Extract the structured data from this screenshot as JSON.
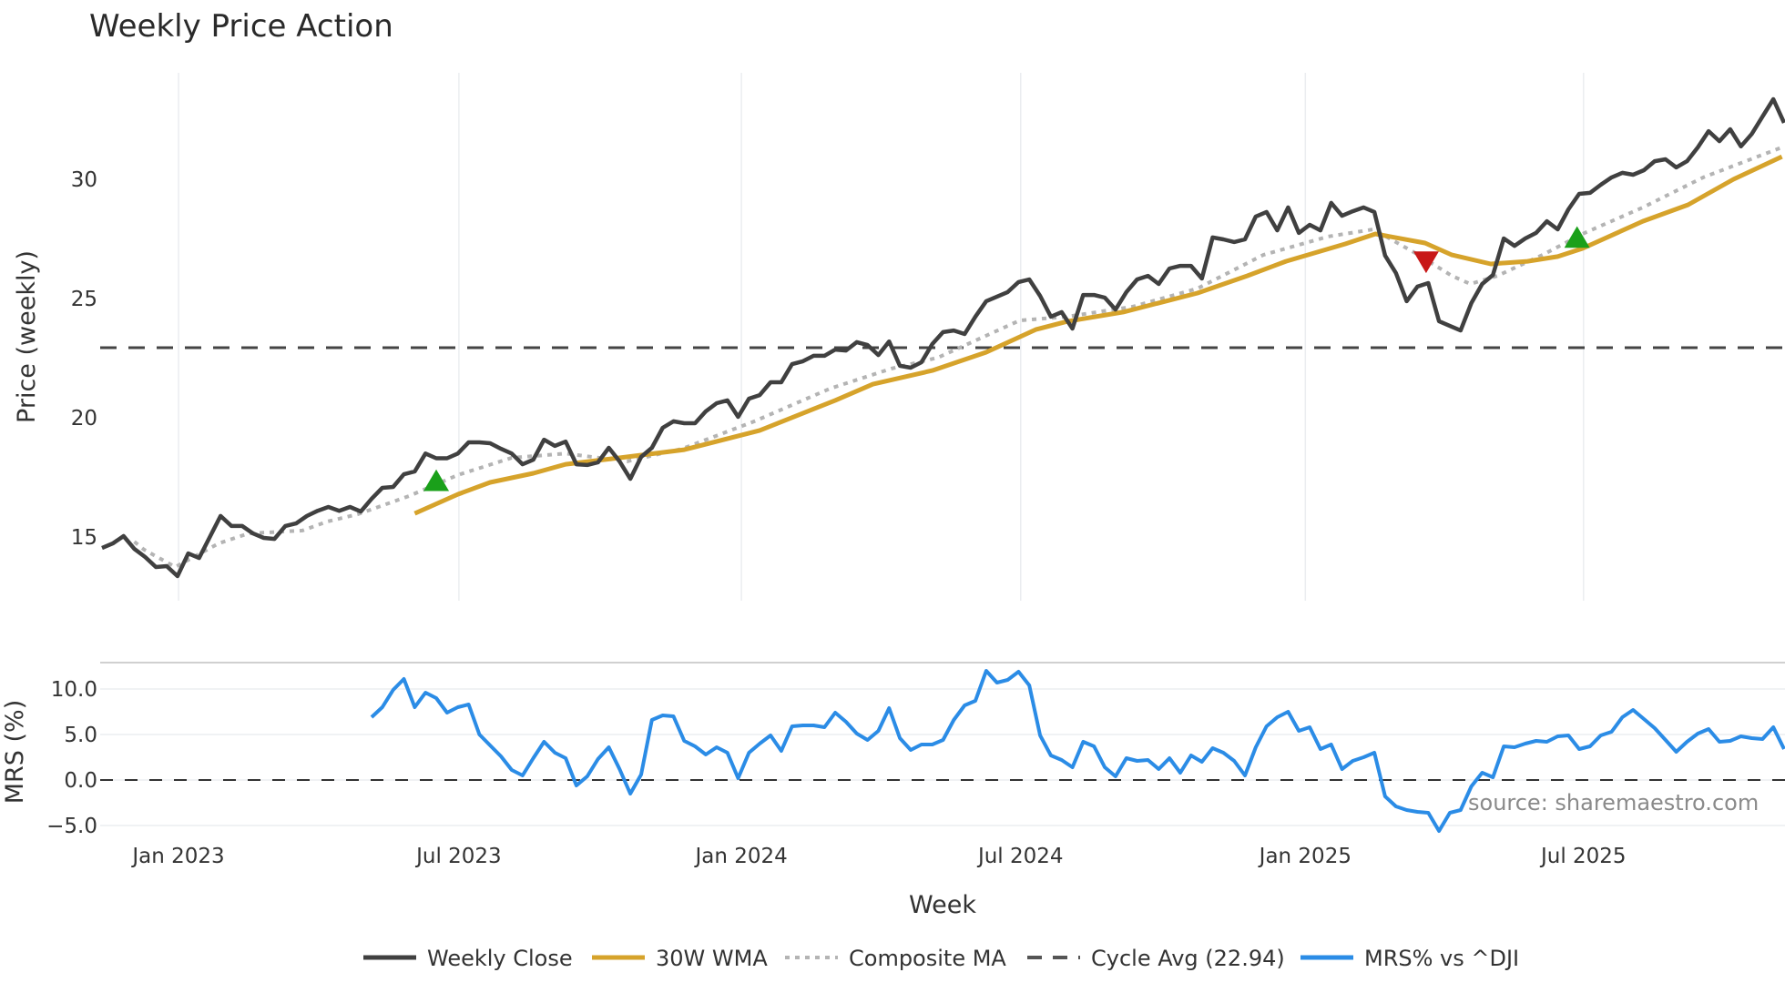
{
  "chart_data": {
    "type": "line",
    "title": "Weekly Price Action",
    "xlabel": "Week",
    "panels": [
      {
        "name": "price",
        "ylabel": "Price (weekly)",
        "yticks": [
          15,
          20,
          25,
          30
        ],
        "ylim": [
          12.8,
          34.5
        ],
        "grid": "vertical-only"
      },
      {
        "name": "mrs",
        "ylabel": "MRS (%)",
        "yticks": [
          -5.0,
          0.0,
          5.0,
          10.0
        ],
        "ytick_labels": [
          "−5.0",
          "0.0",
          "5.0",
          "10.0"
        ],
        "ylim": [
          -7,
          12.5
        ],
        "grid": "horizontal"
      }
    ],
    "x_ticks": [
      {
        "label": "Jan 2023",
        "week_index": 7.1
      },
      {
        "label": "Jul 2023",
        "week_index": 33.1
      },
      {
        "label": "Jan 2024",
        "week_index": 59.3
      },
      {
        "label": "Jul 2024",
        "week_index": 85.2
      },
      {
        "label": "Jan 2025",
        "week_index": 111.6
      },
      {
        "label": "Jul 2025",
        "week_index": 137.4
      }
    ],
    "num_weeks": 157,
    "series": [
      {
        "name": "Weekly Close",
        "panel": "price",
        "color": "#404040",
        "style": "solid",
        "start_index": 0,
        "values": [
          14.54,
          14.73,
          15.04,
          14.5,
          14.16,
          13.74,
          13.78,
          13.36,
          14.31,
          14.12,
          15.0,
          15.88,
          15.46,
          15.46,
          15.15,
          14.96,
          14.92,
          15.46,
          15.57,
          15.88,
          16.1,
          16.26,
          16.1,
          16.26,
          16.07,
          16.6,
          17.06,
          17.1,
          17.63,
          17.75,
          18.5,
          18.3,
          18.3,
          18.5,
          18.97,
          18.97,
          18.93,
          18.7,
          18.5,
          18.05,
          18.24,
          19.08,
          18.82,
          19.0,
          18.05,
          18.02,
          18.13,
          18.74,
          18.17,
          17.44,
          18.36,
          18.74,
          19.58,
          19.85,
          19.77,
          19.77,
          20.27,
          20.61,
          20.73,
          20.04,
          20.8,
          20.95,
          21.49,
          21.49,
          22.25,
          22.37,
          22.6,
          22.6,
          22.86,
          22.82,
          23.17,
          23.05,
          22.63,
          23.2,
          22.18,
          22.1,
          22.33,
          23.09,
          23.59,
          23.66,
          23.51,
          24.24,
          24.89,
          25.08,
          25.27,
          25.69,
          25.8,
          25.11,
          24.24,
          24.43,
          23.74,
          25.15,
          25.15,
          25.04,
          24.54,
          25.27,
          25.8,
          25.95,
          25.61,
          26.26,
          26.37,
          26.37,
          25.84,
          27.56,
          27.48,
          27.37,
          27.48,
          28.44,
          28.63,
          27.86,
          28.82,
          27.75,
          28.09,
          27.86,
          29.01,
          28.47,
          28.66,
          28.82,
          28.63,
          26.8,
          26.07,
          24.89,
          25.5,
          25.65,
          24.05,
          23.85,
          23.66,
          24.81,
          25.61,
          25.99,
          27.52,
          27.21,
          27.52,
          27.75,
          28.24,
          27.9,
          28.74,
          29.39,
          29.43,
          29.77,
          30.08,
          30.27,
          30.19,
          30.38,
          30.76,
          30.84,
          30.5,
          30.76,
          31.34,
          32.02,
          31.6,
          32.1,
          31.38,
          31.9,
          32.63,
          33.36,
          32.37
        ]
      },
      {
        "name": "30W WMA",
        "panel": "price",
        "color": "#D6A32B",
        "style": "solid",
        "points": [
          [
            29,
            15.99
          ],
          [
            33,
            16.79
          ],
          [
            36,
            17.29
          ],
          [
            40,
            17.67
          ],
          [
            43,
            18.05
          ],
          [
            48,
            18.32
          ],
          [
            54,
            18.66
          ],
          [
            61,
            19.47
          ],
          [
            68,
            20.73
          ],
          [
            71.5,
            21.41
          ],
          [
            77,
            21.98
          ],
          [
            82,
            22.75
          ],
          [
            86.6,
            23.7
          ],
          [
            89.5,
            24.04
          ],
          [
            94.7,
            24.43
          ],
          [
            101.6,
            25.23
          ],
          [
            106.2,
            25.95
          ],
          [
            109.8,
            26.56
          ],
          [
            115.3,
            27.29
          ],
          [
            118.1,
            27.71
          ],
          [
            122.7,
            27.33
          ],
          [
            125.2,
            26.83
          ],
          [
            128.8,
            26.45
          ],
          [
            132.2,
            26.56
          ],
          [
            135,
            26.76
          ],
          [
            137.3,
            27.1
          ],
          [
            142.9,
            28.24
          ],
          [
            147.1,
            28.93
          ],
          [
            151.3,
            30.0
          ],
          [
            155.8,
            30.95
          ]
        ]
      },
      {
        "name": "Composite MA",
        "panel": "price",
        "color": "#b4b4b4",
        "style": "dotted",
        "points": [
          [
            3,
            14.8
          ],
          [
            3.9,
            14.47
          ],
          [
            6.8,
            13.74
          ],
          [
            10.8,
            14.73
          ],
          [
            13.6,
            15.15
          ],
          [
            18.6,
            15.27
          ],
          [
            20.9,
            15.65
          ],
          [
            23.7,
            15.95
          ],
          [
            28.5,
            16.72
          ],
          [
            33,
            17.6
          ],
          [
            38,
            18.32
          ],
          [
            43,
            18.5
          ],
          [
            48.7,
            18.17
          ],
          [
            53.8,
            18.7
          ],
          [
            60.5,
            19.85
          ],
          [
            67.5,
            21.22
          ],
          [
            73.2,
            22.06
          ],
          [
            77.5,
            22.52
          ],
          [
            85.1,
            24.08
          ],
          [
            89.5,
            24.24
          ],
          [
            95.6,
            24.66
          ],
          [
            101.6,
            25.42
          ],
          [
            107.7,
            26.83
          ],
          [
            113.7,
            27.6
          ],
          [
            117.9,
            27.9
          ],
          [
            121.8,
            26.91
          ],
          [
            125.2,
            25.95
          ],
          [
            126.9,
            25.61
          ],
          [
            129.4,
            25.95
          ],
          [
            133.6,
            26.83
          ],
          [
            137.3,
            27.71
          ],
          [
            142.9,
            28.82
          ],
          [
            148.5,
            30.08
          ],
          [
            155.8,
            31.34
          ]
        ]
      },
      {
        "name": "Cycle Avg (22.94)",
        "panel": "price",
        "color": "#444444",
        "style": "dashed",
        "value": 22.94
      },
      {
        "name": "MRS% vs ^DJI",
        "panel": "mrs",
        "color": "#2B8CE6",
        "style": "solid",
        "start_index": 25,
        "values": [
          6.9,
          8.0,
          9.9,
          11.1,
          8.0,
          9.6,
          9.0,
          7.4,
          8.0,
          8.3,
          5.0,
          3.8,
          2.6,
          1.1,
          0.5,
          2.4,
          4.2,
          3.0,
          2.4,
          -0.6,
          0.4,
          2.3,
          3.6,
          1.2,
          -1.5,
          0.6,
          6.6,
          7.1,
          7.0,
          4.3,
          3.7,
          2.8,
          3.6,
          3.0,
          0.2,
          3.0,
          4.0,
          4.9,
          3.2,
          5.9,
          6.0,
          6.0,
          5.8,
          7.4,
          6.4,
          5.1,
          4.4,
          5.4,
          7.9,
          4.6,
          3.3,
          3.9,
          3.9,
          4.4,
          6.6,
          8.2,
          8.7,
          12.0,
          10.7,
          11.0,
          11.9,
          10.4,
          4.9,
          2.7,
          2.2,
          1.4,
          4.2,
          3.7,
          1.4,
          0.4,
          2.4,
          2.1,
          2.2,
          1.2,
          2.4,
          0.8,
          2.7,
          2.0,
          3.5,
          3.0,
          2.1,
          0.5,
          3.6,
          5.9,
          6.9,
          7.5,
          5.4,
          5.8,
          3.4,
          3.9,
          1.2,
          2.1,
          2.5,
          3.0,
          -1.8,
          -2.9,
          -3.3,
          -3.5,
          -3.6,
          -5.6,
          -3.6,
          -3.3,
          -0.7,
          0.8,
          0.3,
          3.7,
          3.6,
          4.0,
          4.3,
          4.2,
          4.8,
          4.9,
          3.4,
          3.7,
          4.9,
          5.3,
          6.9,
          7.7,
          6.7,
          5.7,
          4.4,
          3.1,
          4.2,
          5.1,
          5.6,
          4.2,
          4.3,
          4.8,
          4.6,
          4.5,
          5.8,
          3.4
        ]
      }
    ],
    "mrs_zero_line": 0.0,
    "markers": [
      {
        "type": "buy",
        "shape": "triangle-up",
        "color": "#1AA01A",
        "week_index": 31,
        "price": 17.3
      },
      {
        "type": "sell",
        "shape": "triangle-down",
        "color": "#C81818",
        "week_index": 122.8,
        "price": 26.6
      },
      {
        "type": "buy",
        "shape": "triangle-up",
        "color": "#1AA01A",
        "week_index": 136.8,
        "price": 27.5
      }
    ],
    "legend": {
      "position": "bottom-center",
      "items": [
        {
          "label": "Weekly Close",
          "color": "#404040",
          "style": "solid"
        },
        {
          "label": "30W WMA",
          "color": "#D6A32B",
          "style": "solid"
        },
        {
          "label": "Composite MA",
          "color": "#b4b4b4",
          "style": "dotted"
        },
        {
          "label": "Cycle Avg (22.94)",
          "color": "#555555",
          "style": "dashed"
        },
        {
          "label": "MRS% vs ^DJI",
          "color": "#2B8CE6",
          "style": "solid"
        }
      ]
    },
    "annotation": "source: sharemaestro.com"
  }
}
